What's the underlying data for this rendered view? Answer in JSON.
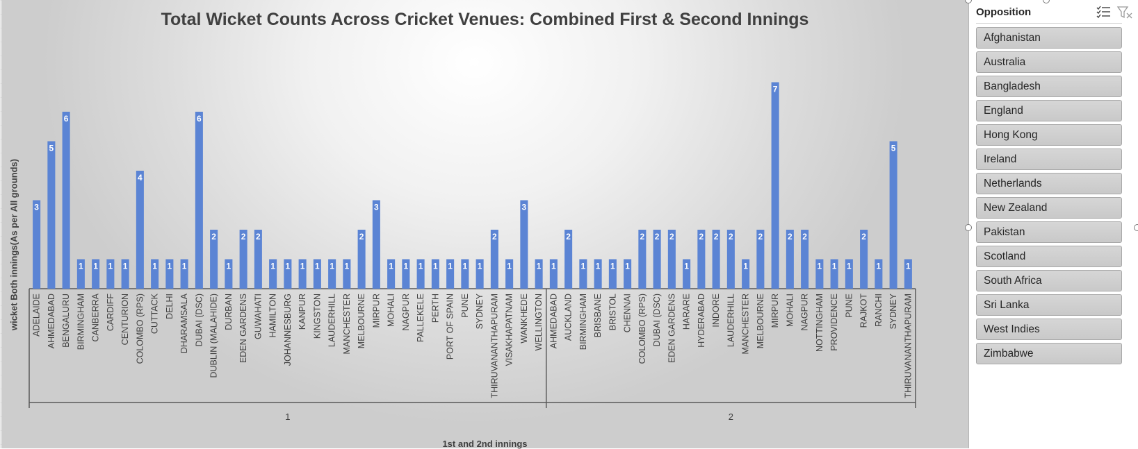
{
  "chart_data": {
    "type": "bar",
    "title": "Total Wicket Counts Across Cricket Venues: Combined First & Second Innings",
    "ylabel": "wicket Both innings(As per All grounds)",
    "xlabel": "1st and 2nd innings",
    "ylim": [
      0,
      7.5
    ],
    "grid": false,
    "data_labels": true,
    "bar_color": "#5b84d4",
    "groups": [
      {
        "name": "1",
        "categories": [
          "ADELAIDE",
          "AHMEDABAD",
          "BENGALURU",
          "BIRMINGHAM",
          "CANBERRA",
          "CARDIFF",
          "CENTURION",
          "COLOMBO (RPS)",
          "CUTTACK",
          "DELHI",
          "DHARAMSALA",
          "DUBAI (DSC)",
          "DUBLIN (MALAHIDE)",
          "DURBAN",
          "EDEN GARDENS",
          "GUWAHATI",
          "HAMILTON",
          "JOHANNESBURG",
          "KANPUR",
          "KINGSTON",
          "LAUDERHILL",
          "MANCHESTER",
          "MELBOURNE",
          "MIRPUR",
          "MOHALI",
          "NAGPUR",
          "PALLEKELE",
          "PERTH",
          "PORT OF SPAIN",
          "PUNE",
          "SYDNEY",
          "THIRUVANANTHAPURAM",
          "VISAKHAPATNAM",
          "WANKHEDE",
          "WELLINGTON"
        ],
        "values": [
          3,
          5,
          6,
          1,
          1,
          1,
          1,
          4,
          1,
          1,
          1,
          6,
          2,
          1,
          2,
          2,
          1,
          1,
          1,
          1,
          1,
          1,
          2,
          3,
          1,
          1,
          1,
          1,
          1,
          1,
          1,
          2,
          1,
          3,
          1
        ]
      },
      {
        "name": "2",
        "categories": [
          "AHMEDABAD",
          "AUCKLAND",
          "BIRMINGHAM",
          "BRISBANE",
          "BRISTOL",
          "CHENNAI",
          "COLOMBO (RPS)",
          "DUBAI (DSC)",
          "EDEN GARDENS",
          "HARARE",
          "HYDERABAD",
          "INDORE",
          "LAUDERHILL",
          "MANCHESTER",
          "MELBOURNE",
          "MIRPUR",
          "MOHALI",
          "NAGPUR",
          "NOTTINGHAM",
          "PROVIDENCE",
          "PUNE",
          "RAJKOT",
          "RANCHI",
          "SYDNEY",
          "THIRUVANANTHAPURAM"
        ],
        "values": [
          1,
          2,
          1,
          1,
          1,
          1,
          2,
          2,
          2,
          1,
          2,
          2,
          2,
          1,
          2,
          7,
          2,
          2,
          1,
          1,
          1,
          2,
          1,
          5,
          1
        ]
      }
    ]
  },
  "slicer": {
    "title": "Opposition",
    "multi_select_icon": "multi-select-icon",
    "clear_filter_icon": "clear-filter-icon",
    "items": [
      "Afghanistan",
      "Australia",
      "Bangladesh",
      "England",
      "Hong Kong",
      "Ireland",
      "Netherlands",
      "New Zealand",
      "Pakistan",
      "Scotland",
      "South Africa",
      "Sri Lanka",
      "West Indies",
      "Zimbabwe"
    ]
  }
}
